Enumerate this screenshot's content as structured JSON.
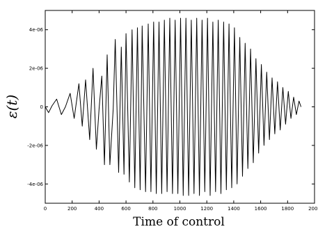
{
  "chart_data": {
    "type": "line",
    "title": "",
    "xlabel": "Time of control",
    "ylabel": "ε(t)",
    "xlim": [
      0,
      2000
    ],
    "ylim": [
      -5e-06,
      5e-06
    ],
    "x_ticks": [
      0,
      200,
      400,
      600,
      800,
      1000,
      1200,
      1400,
      1600,
      1800,
      2000
    ],
    "x_tick_labels": [
      "0",
      "200",
      "400",
      "600",
      "800",
      "1000",
      "1200",
      "1400",
      "1600",
      "1800",
      "2000"
    ],
    "y_ticks": [
      -4e-06,
      -2e-06,
      0,
      2e-06,
      4e-06
    ],
    "y_tick_labels": [
      "-4e-06",
      "-2e-06",
      "0",
      "2e-06",
      "4e-06"
    ],
    "grid": false,
    "series": [
      {
        "name": "",
        "x": [
          0,
          25,
          50,
          85,
          120,
          150,
          185,
          215,
          250,
          275,
          300,
          330,
          355,
          380,
          400,
          420,
          440,
          460,
          480,
          505,
          520,
          545,
          565,
          585,
          600,
          625,
          645,
          665,
          685,
          705,
          720,
          745,
          765,
          785,
          805,
          825,
          845,
          865,
          885,
          905,
          925,
          945,
          965,
          985,
          1005,
          1025,
          1045,
          1065,
          1085,
          1105,
          1125,
          1145,
          1165,
          1185,
          1205,
          1225,
          1245,
          1265,
          1285,
          1305,
          1325,
          1345,
          1365,
          1385,
          1405,
          1425,
          1445,
          1465,
          1485,
          1505,
          1525,
          1545,
          1565,
          1585,
          1605,
          1625,
          1645,
          1665,
          1685,
          1705,
          1725,
          1745,
          1765,
          1785,
          1805,
          1825,
          1845,
          1865,
          1885,
          1900
        ],
        "y": [
          0,
          -3e-07,
          5e-08,
          4e-07,
          -4e-07,
          0,
          7e-07,
          -6e-07,
          1.2e-06,
          -1e-06,
          1.4e-06,
          -1.7e-06,
          2e-06,
          -2.2e-06,
          -1e-07,
          1.6e-06,
          -3e-06,
          2.7e-06,
          -3e-06,
          -1e-07,
          3.5e-06,
          -3.4e-06,
          3.1e-06,
          -3.5e-06,
          3.8e-06,
          -3.9e-06,
          4e-06,
          -4.2e-06,
          4.1e-06,
          -4.3e-06,
          4.2e-06,
          -4.4e-06,
          4.3e-06,
          -4.4e-06,
          4.4e-06,
          -4.5e-06,
          4.4e-06,
          -4.5e-06,
          4.5e-06,
          -4.4e-06,
          4.6e-06,
          -4.5e-06,
          4.5e-06,
          -4.5e-06,
          4.6e-06,
          -4.6e-06,
          4.6e-06,
          -4.6e-06,
          4.5e-06,
          -4.5e-06,
          4.6e-06,
          -4.6e-06,
          4.5e-06,
          -4.4e-06,
          4.6e-06,
          -4.6e-06,
          4.4e-06,
          -4.4e-06,
          4.5e-06,
          -4.5e-06,
          4.4e-06,
          -4.3e-06,
          4.3e-06,
          -4.2e-06,
          4.1e-06,
          -4e-06,
          3.6e-06,
          -3.6e-06,
          3.3e-06,
          -3.2e-06,
          3e-06,
          -2.9e-06,
          2.5e-06,
          -2.4e-06,
          2.2e-06,
          -2e-06,
          1.8e-06,
          -1.7e-06,
          1.5e-06,
          -1.4e-06,
          1.3e-06,
          -1.2e-06,
          1e-06,
          -9e-07,
          8e-07,
          -6e-07,
          5e-07,
          -4e-07,
          3e-07,
          0
        ]
      }
    ]
  }
}
